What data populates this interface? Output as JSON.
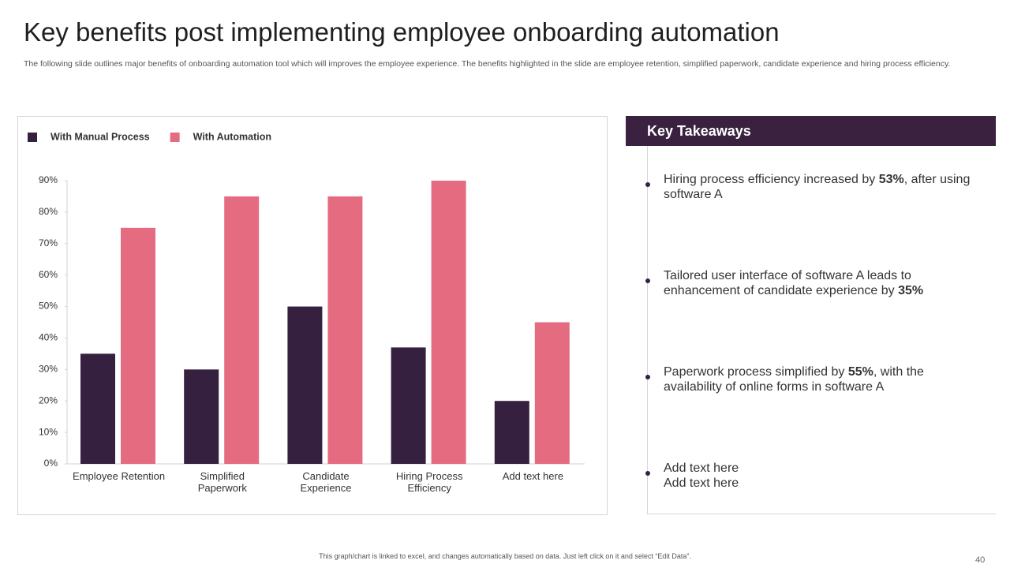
{
  "title": "Key benefits post implementing employee onboarding automation",
  "subtitle": "The following slide outlines major benefits of onboarding automation tool which will improves the employee experience. The benefits highlighted in the slide are employee retention, simplified paperwork, candidate experience and hiring process efficiency.",
  "chart_data": {
    "type": "bar",
    "categories": [
      "Employee Retention",
      "Simplified Paperwork",
      "Candidate Experience",
      "Hiring Process Efficiency",
      "Add text here"
    ],
    "series": [
      {
        "name": "With Manual Process",
        "color": "#35213f",
        "values": [
          35,
          30,
          50,
          37,
          20
        ]
      },
      {
        "name": "With Automation",
        "color": "#e56b80",
        "values": [
          75,
          85,
          85,
          90,
          45
        ]
      }
    ],
    "ylim": [
      0,
      90
    ],
    "yticks": [
      {
        "value": 0,
        "label": "0%"
      },
      {
        "value": 10,
        "label": "10%"
      },
      {
        "value": 20,
        "label": "20%"
      },
      {
        "value": 30,
        "label": "30%"
      },
      {
        "value": 40,
        "label": "40%"
      },
      {
        "value": 50,
        "label": "50%"
      },
      {
        "value": 60,
        "label": "60%"
      },
      {
        "value": 70,
        "label": "70%"
      },
      {
        "value": 80,
        "label": "80%"
      },
      {
        "value": 90,
        "label": "90%"
      }
    ],
    "grid": false,
    "legend": "top-left"
  },
  "takeaways": {
    "heading": "Key Takeaways",
    "items": [
      [
        [
          {
            "text": "Hiring process efficiency increased by "
          },
          {
            "text": "53%",
            "bold": true
          },
          {
            "text": ", after using software A"
          }
        ]
      ],
      [
        [
          {
            "text": "Tailored user interface of software A leads to enhancement  of candidate experience by "
          },
          {
            "text": "35%",
            "bold": true
          }
        ]
      ],
      [
        [
          {
            "text": "Paperwork process simplified by "
          },
          {
            "text": "55%",
            "bold": true
          },
          {
            "text": ", with the availability of online forms in software A"
          }
        ]
      ],
      [
        [
          {
            "text": "Add text here"
          }
        ],
        [
          {
            "text": "Add text here"
          }
        ]
      ]
    ]
  },
  "footnote": "This graph/chart is linked to excel, and changes automatically based on data. Just left click on it and select “Edit Data”.",
  "page_number": "40"
}
